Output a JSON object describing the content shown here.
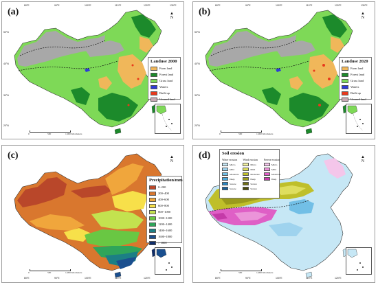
{
  "panels": [
    {
      "id": "a",
      "label": "(a)",
      "legend_title": "Landuse 2000"
    },
    {
      "id": "b",
      "label": "(b)",
      "legend_title": "Landuse 2020"
    },
    {
      "id": "c",
      "label": "(c)",
      "legend_title": "Precipitation/mm"
    },
    {
      "id": "d",
      "label": "(d)",
      "legend_title": "Soil erosion"
    }
  ],
  "landuse_legend": [
    {
      "label": "Farm land",
      "color": "#f0b75a"
    },
    {
      "label": "Forest land",
      "color": "#1c8a2b"
    },
    {
      "label": "Grass land",
      "color": "#7ed957"
    },
    {
      "label": "Waters",
      "color": "#2f3bd6"
    },
    {
      "label": "Built-up",
      "color": "#e8391c"
    },
    {
      "label": "Unused land",
      "color": "#c9a9b4"
    }
  ],
  "precip_legend": [
    {
      "label": "0~200",
      "color": "#b9472a"
    },
    {
      "label": "200~400",
      "color": "#d9772e"
    },
    {
      "label": "400~600",
      "color": "#f0a63c"
    },
    {
      "label": "600~800",
      "color": "#f7e04a"
    },
    {
      "label": "800~1000",
      "color": "#c3e24f"
    },
    {
      "label": "1000~1200",
      "color": "#69c743"
    },
    {
      "label": "1200~1400",
      "color": "#2fa55a"
    },
    {
      "label": "1400~1600",
      "color": "#1c7f85"
    },
    {
      "label": "1600~1800",
      "color": "#1a4f8f"
    },
    {
      "label": "> 1800",
      "color": "#0f2d6b"
    }
  ],
  "soil_legend": {
    "water_title": "Water erosion",
    "wind_title": "Wind erosion",
    "freeze_title": "Freeze erosion",
    "water": [
      {
        "label": "Micro",
        "color": "#c6e7f5"
      },
      {
        "label": "Mild",
        "color": "#9fd3ee"
      },
      {
        "label": "Moderate",
        "color": "#72bfe6"
      },
      {
        "label": "Deep",
        "color": "#4aa6d9"
      },
      {
        "label": "Severe",
        "color": "#2a86c2"
      },
      {
        "label": "Severe",
        "color": "#1a5f9a"
      }
    ],
    "wind": [
      {
        "label": "Micro",
        "color": "#f2f2a2"
      },
      {
        "label": "Mild",
        "color": "#dede5e"
      },
      {
        "label": "Moderate",
        "color": "#bfbf2a"
      },
      {
        "label": "Deep",
        "color": "#9a9a1c"
      },
      {
        "label": "Severe",
        "color": "#6e6e14"
      },
      {
        "label": "Severe",
        "color": "#4a4a0c"
      }
    ],
    "freeze": [
      {
        "label": "Micro",
        "color": "#f4c6ea"
      },
      {
        "label": "Mild",
        "color": "#eb94d9"
      },
      {
        "label": "Moderate",
        "color": "#df5fc6"
      },
      {
        "label": "Deep",
        "color": "#c43aa8"
      }
    ]
  },
  "coords": {
    "lon": [
      "80°E",
      "90°E",
      "100°E",
      "110°E",
      "120°E",
      "130°E"
    ],
    "lat": [
      "50°N",
      "40°N",
      "30°N",
      "20°N"
    ]
  },
  "scale": {
    "zero": "0",
    "mid": "500",
    "end": "1,000 Kilometers"
  },
  "north": {
    "letter": "N"
  },
  "colors": {
    "unused": "#a8a8a8",
    "grass": "#7ed957",
    "forest": "#1c8a2b",
    "farm": "#f0b75a",
    "water": "#2f3bd6",
    "built": "#e8391c",
    "sea": "#ffffff"
  }
}
